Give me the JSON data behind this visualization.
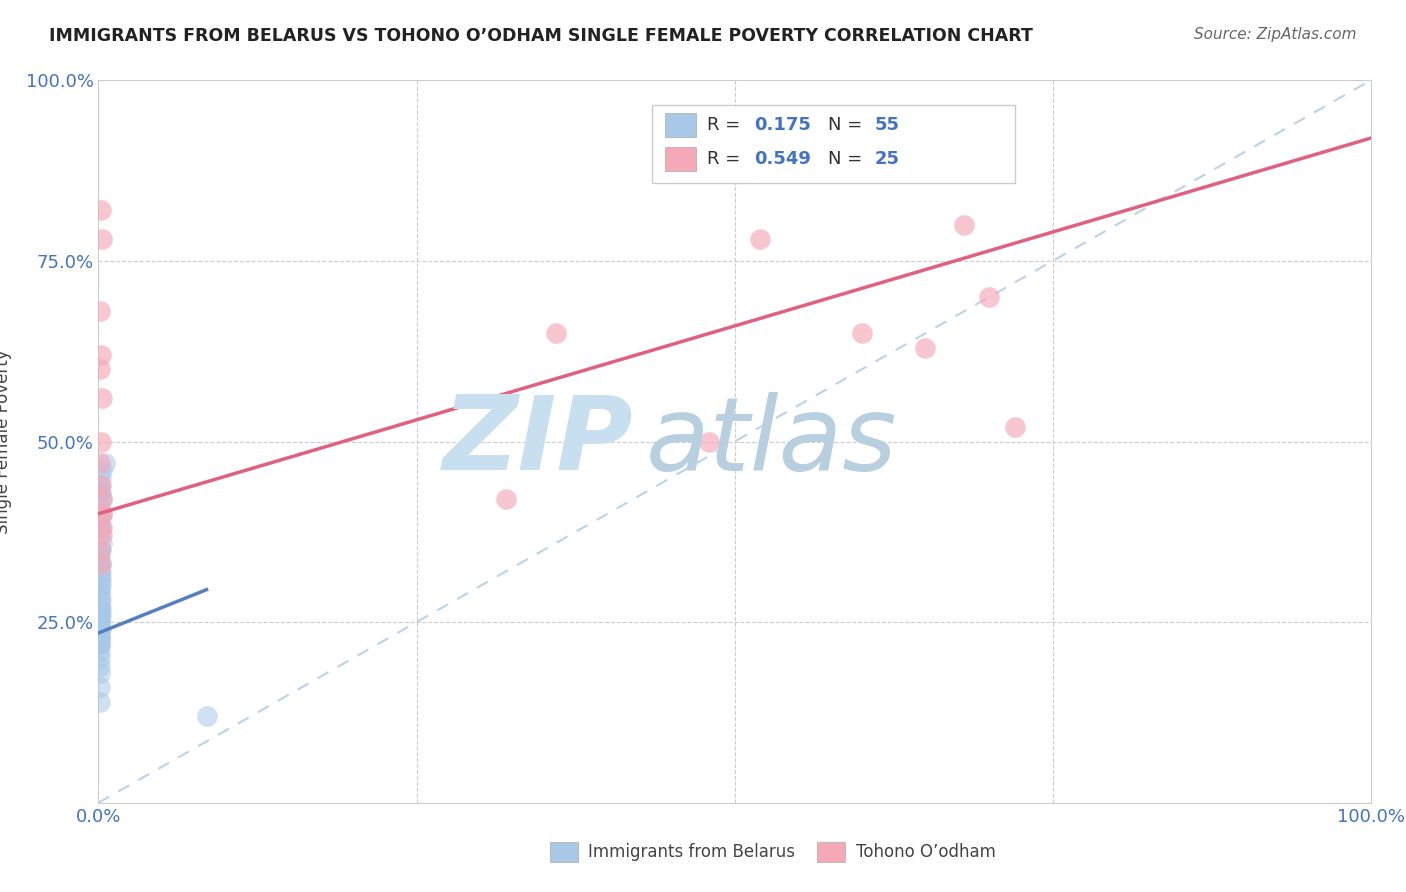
{
  "title": "IMMIGRANTS FROM BELARUS VS TOHONO O’ODHAM SINGLE FEMALE POVERTY CORRELATION CHART",
  "source": "Source: ZipAtlas.com",
  "xlabel_blue": "Immigrants from Belarus",
  "xlabel_pink": "Tohono O’odham",
  "ylabel": "Single Female Poverty",
  "r_blue": 0.175,
  "n_blue": 55,
  "r_pink": 0.549,
  "n_pink": 25,
  "blue_color": "#a8c8e8",
  "pink_color": "#f4a8b8",
  "trend_blue": "#5580c0",
  "trend_pink": "#e06080",
  "diag_color": "#a8c8e8",
  "xlim": [
    0.0,
    1.0
  ],
  "ylim": [
    0.0,
    1.0
  ],
  "watermark_zip": "ZIP",
  "watermark_atlas": "atlas",
  "watermark_color_zip": "#c8dff0",
  "watermark_color_atlas": "#b0c8e0",
  "background_color": "#ffffff",
  "blue_x": [
    0.005,
    0.003,
    0.002,
    0.001,
    0.002,
    0.001,
    0.003,
    0.001,
    0.002,
    0.001,
    0.001,
    0.002,
    0.001,
    0.003,
    0.002,
    0.001,
    0.001,
    0.002,
    0.001,
    0.002,
    0.001,
    0.001,
    0.002,
    0.001,
    0.002,
    0.001,
    0.001,
    0.002,
    0.001,
    0.001,
    0.001,
    0.002,
    0.001,
    0.001,
    0.002,
    0.001,
    0.001,
    0.001,
    0.002,
    0.001,
    0.001,
    0.001,
    0.001,
    0.001,
    0.001,
    0.001,
    0.001,
    0.001,
    0.001,
    0.001,
    0.001,
    0.001,
    0.001,
    0.001,
    0.085
  ],
  "blue_y": [
    0.47,
    0.46,
    0.45,
    0.44,
    0.43,
    0.43,
    0.42,
    0.41,
    0.4,
    0.39,
    0.38,
    0.38,
    0.37,
    0.36,
    0.35,
    0.35,
    0.34,
    0.33,
    0.33,
    0.32,
    0.32,
    0.31,
    0.31,
    0.3,
    0.3,
    0.29,
    0.29,
    0.28,
    0.28,
    0.27,
    0.27,
    0.27,
    0.26,
    0.26,
    0.26,
    0.25,
    0.25,
    0.25,
    0.24,
    0.24,
    0.24,
    0.24,
    0.23,
    0.23,
    0.23,
    0.22,
    0.22,
    0.22,
    0.21,
    0.2,
    0.19,
    0.18,
    0.16,
    0.14,
    0.12
  ],
  "pink_x": [
    0.002,
    0.003,
    0.001,
    0.002,
    0.001,
    0.003,
    0.002,
    0.001,
    0.002,
    0.003,
    0.003,
    0.003,
    0.003,
    0.001,
    0.002,
    0.003,
    0.32,
    0.36,
    0.48,
    0.52,
    0.6,
    0.65,
    0.68,
    0.7,
    0.72
  ],
  "pink_y": [
    0.82,
    0.78,
    0.68,
    0.62,
    0.6,
    0.56,
    0.5,
    0.47,
    0.44,
    0.42,
    0.4,
    0.38,
    0.37,
    0.35,
    0.33,
    0.4,
    0.42,
    0.65,
    0.5,
    0.78,
    0.65,
    0.63,
    0.8,
    0.7,
    0.52
  ],
  "pink_trend_x0": 0.0,
  "pink_trend_y0": 0.4,
  "pink_trend_x1": 1.0,
  "pink_trend_y1": 0.92,
  "blue_trend_x0": 0.0,
  "blue_trend_y0": 0.235,
  "blue_trend_x1": 0.085,
  "blue_trend_y1": 0.295
}
